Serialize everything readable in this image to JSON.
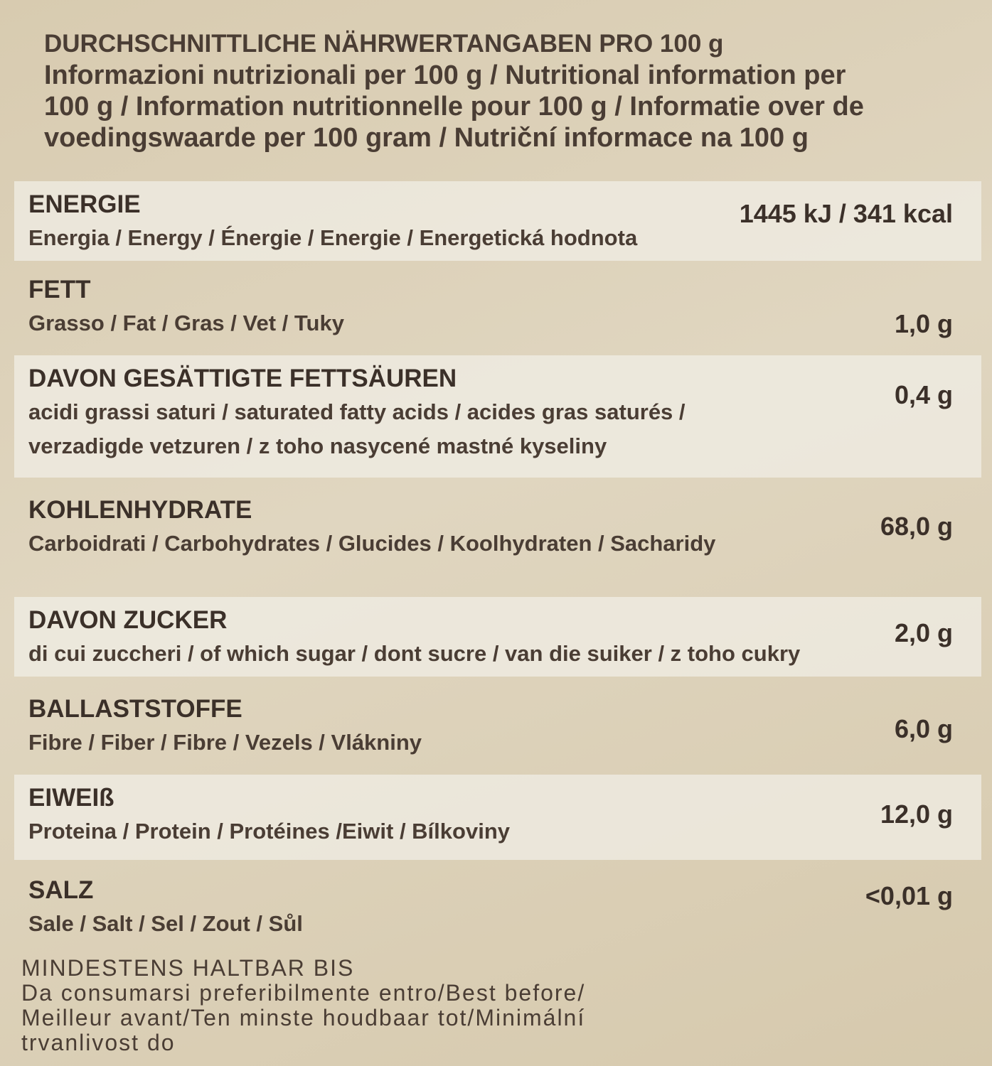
{
  "header": {
    "lines": [
      "DURCHSCHNITTLICHE NÄHRWERTANGABEN PRO 100 g",
      "Informazioni nutrizionali per 100 g / Nutritional information per",
      "100 g / Information nutritionnelle pour 100 g / Informatie over de",
      "voedingswaarde per 100 gram / Nutriční informace na 100 g"
    ]
  },
  "rows": [
    {
      "title": "ENERGIE",
      "lines": [
        "Energia / Energy / Énergie / Energie / Energetická hodnota"
      ],
      "value": "1445 kJ / 341 kcal"
    },
    {
      "title": "FETT",
      "lines": [
        "Grasso / Fat / Gras / Vet / Tuky"
      ],
      "value": "1,0 g"
    },
    {
      "title": "DAVON GESÄTTIGTE FETTSÄUREN",
      "lines": [
        "acidi grassi saturi / saturated fatty acids / acides gras saturés /",
        "verzadigde vetzuren / z toho nasycené mastné kyseliny"
      ],
      "value": "0,4 g"
    },
    {
      "title": "KOHLENHYDRATE",
      "lines": [
        "Carboidrati / Carbohydrates / Glucides / Koolhydraten / Sacharidy"
      ],
      "value": "68,0 g"
    },
    {
      "title": "DAVON ZUCKER",
      "lines": [
        "di cui zuccheri / of which sugar / dont sucre / van die suiker / z toho cukry"
      ],
      "value": "2,0 g"
    },
    {
      "title": "BALLASTSTOFFE",
      "lines": [
        "Fibre / Fiber / Fibre / Vezels / Vlákniny"
      ],
      "value": "6,0 g"
    },
    {
      "title": "EIWEIß",
      "lines": [
        "Proteina / Protein / Protéines /Eiwit / Bílkoviny"
      ],
      "value": "12,0 g"
    },
    {
      "title": "SALZ",
      "lines": [
        "Sale / Salt / Sel / Zout / Sůl"
      ],
      "value": "<0,01 g"
    }
  ],
  "footer": {
    "lines": [
      "MINDESTENS HALTBAR BIS",
      "Da consumarsi preferibilmente entro/Best before/",
      "Meilleur avant/Ten minste houdbaar tot/Minimální",
      "trvanlivost do"
    ]
  }
}
